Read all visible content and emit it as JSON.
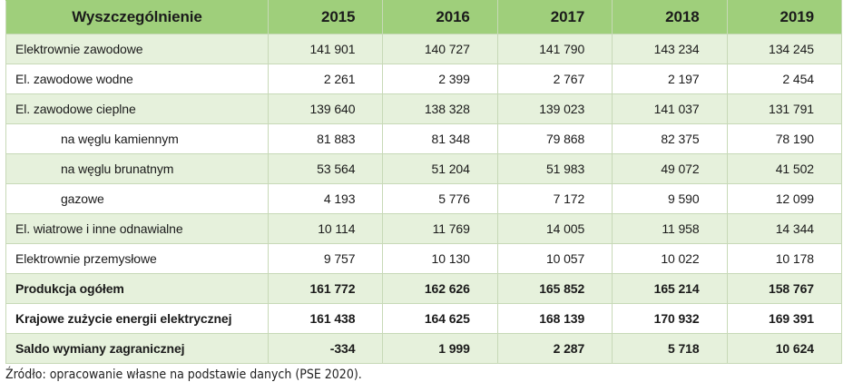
{
  "table": {
    "headers": [
      "Wyszczególnienie",
      "2015",
      "2016",
      "2017",
      "2018",
      "2019"
    ],
    "rows": [
      {
        "label": "Elektrownie zawodowe",
        "indent": false,
        "bold": false,
        "values": [
          "141 901",
          "140 727",
          "141 790",
          "143 234",
          "134 245"
        ]
      },
      {
        "label": "El. zawodowe wodne",
        "indent": false,
        "bold": false,
        "values": [
          "2 261",
          "2 399",
          "2 767",
          "2 197",
          "2 454"
        ]
      },
      {
        "label": "El. zawodowe cieplne",
        "indent": false,
        "bold": false,
        "values": [
          "139 640",
          "138 328",
          "139 023",
          "141 037",
          "131 791"
        ]
      },
      {
        "label": "na węglu kamiennym",
        "indent": true,
        "bold": false,
        "values": [
          "81 883",
          "81 348",
          "79 868",
          "82 375",
          "78 190"
        ]
      },
      {
        "label": "na węglu brunatnym",
        "indent": true,
        "bold": false,
        "values": [
          "53 564",
          "51 204",
          "51 983",
          "49 072",
          "41 502"
        ]
      },
      {
        "label": "gazowe",
        "indent": true,
        "bold": false,
        "values": [
          "4 193",
          "5 776",
          "7 172",
          "9 590",
          "12 099"
        ]
      },
      {
        "label": "El. wiatrowe i inne odnawialne",
        "indent": false,
        "bold": false,
        "values": [
          "10 114",
          "11 769",
          "14 005",
          "11 958",
          "14 344"
        ]
      },
      {
        "label": "Elektrownie przemysłowe",
        "indent": false,
        "bold": false,
        "values": [
          "9 757",
          "10 130",
          "10 057",
          "10 022",
          "10 178"
        ]
      },
      {
        "label": "Produkcja ogółem",
        "indent": false,
        "bold": true,
        "values": [
          "161 772",
          "162 626",
          "165 852",
          "165 214",
          "158 767"
        ]
      },
      {
        "label": "Krajowe zużycie energii elektrycznej",
        "indent": false,
        "bold": true,
        "values": [
          "161 438",
          "164 625",
          "168 139",
          "170 932",
          "169 391"
        ]
      },
      {
        "label": "Saldo wymiany zagranicznej",
        "indent": false,
        "bold": true,
        "values": [
          "-334",
          "1 999",
          "2 287",
          "5 718",
          "10 624"
        ]
      }
    ]
  },
  "source_note": "Źródło: opracowanie własne na podstawie danych (PSE 2020).",
  "colors": {
    "header_bg": "#9fcf7b",
    "stripe_bg": "#e6f1dc",
    "border": "#c7d9b7"
  }
}
